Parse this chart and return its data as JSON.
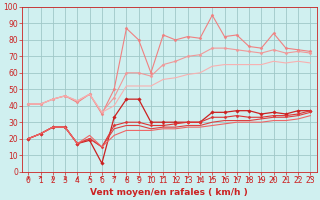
{
  "background_color": "#d0f0f0",
  "grid_color": "#a0c8c8",
  "xlim": [
    -0.5,
    23.5
  ],
  "ylim": [
    0,
    100
  ],
  "xticks": [
    0,
    1,
    2,
    3,
    4,
    5,
    6,
    7,
    8,
    9,
    10,
    11,
    12,
    13,
    14,
    15,
    16,
    17,
    18,
    19,
    20,
    21,
    22,
    23
  ],
  "yticks": [
    0,
    10,
    20,
    30,
    40,
    50,
    60,
    70,
    80,
    90,
    100
  ],
  "xlabel": "Vent moyen/en rafales ( km/h )",
  "xlabel_color": "#cc2222",
  "xlabel_fontsize": 6.5,
  "tick_fontsize": 5.5,
  "series": [
    {
      "x": [
        0,
        1,
        2,
        3,
        4,
        5,
        6,
        7,
        8,
        9,
        10,
        11,
        12,
        13,
        14,
        15,
        16,
        17,
        18,
        19,
        20,
        21,
        22,
        23
      ],
      "y": [
        41,
        41,
        44,
        46,
        42,
        47,
        35,
        50,
        87,
        80,
        60,
        83,
        80,
        82,
        81,
        95,
        82,
        83,
        76,
        75,
        84,
        75,
        74,
        73
      ],
      "color": "#f08080",
      "lw": 0.8,
      "marker": "D",
      "ms": 1.5
    },
    {
      "x": [
        0,
        1,
        2,
        3,
        4,
        5,
        6,
        7,
        8,
        9,
        10,
        11,
        12,
        13,
        14,
        15,
        16,
        17,
        18,
        19,
        20,
        21,
        22,
        23
      ],
      "y": [
        41,
        41,
        44,
        46,
        43,
        47,
        36,
        45,
        60,
        60,
        58,
        65,
        67,
        70,
        71,
        75,
        75,
        74,
        73,
        72,
        74,
        72,
        73,
        72
      ],
      "color": "#f09898",
      "lw": 0.8,
      "marker": "D",
      "ms": 1.5
    },
    {
      "x": [
        0,
        1,
        2,
        3,
        4,
        5,
        6,
        7,
        8,
        9,
        10,
        11,
        12,
        13,
        14,
        15,
        16,
        17,
        18,
        19,
        20,
        21,
        22,
        23
      ],
      "y": [
        41,
        41,
        44,
        46,
        43,
        47,
        36,
        40,
        52,
        52,
        52,
        56,
        57,
        59,
        60,
        64,
        65,
        65,
        65,
        65,
        67,
        66,
        67,
        66
      ],
      "color": "#f8b0b0",
      "lw": 0.8,
      "marker": null,
      "ms": 0
    },
    {
      "x": [
        0,
        1,
        2,
        3,
        4,
        5,
        6,
        7,
        8,
        9,
        10,
        11,
        12,
        13,
        14,
        15,
        16,
        17,
        18,
        19,
        20,
        21,
        22,
        23
      ],
      "y": [
        20,
        23,
        27,
        27,
        17,
        19,
        5,
        33,
        44,
        44,
        30,
        30,
        30,
        30,
        30,
        36,
        36,
        37,
        37,
        35,
        36,
        35,
        37,
        37
      ],
      "color": "#cc2020",
      "lw": 0.9,
      "marker": "D",
      "ms": 1.8
    },
    {
      "x": [
        0,
        1,
        2,
        3,
        4,
        5,
        6,
        7,
        8,
        9,
        10,
        11,
        12,
        13,
        14,
        15,
        16,
        17,
        18,
        19,
        20,
        21,
        22,
        23
      ],
      "y": [
        20,
        23,
        27,
        27,
        17,
        20,
        15,
        28,
        30,
        30,
        28,
        28,
        29,
        30,
        30,
        33,
        33,
        34,
        33,
        33,
        34,
        34,
        35,
        37
      ],
      "color": "#dd3333",
      "lw": 0.8,
      "marker": "D",
      "ms": 1.5
    },
    {
      "x": [
        0,
        1,
        2,
        3,
        4,
        5,
        6,
        7,
        8,
        9,
        10,
        11,
        12,
        13,
        14,
        15,
        16,
        17,
        18,
        19,
        20,
        21,
        22,
        23
      ],
      "y": [
        20,
        23,
        27,
        27,
        17,
        20,
        15,
        26,
        28,
        28,
        26,
        27,
        27,
        28,
        28,
        30,
        31,
        31,
        31,
        32,
        33,
        33,
        34,
        36
      ],
      "color": "#dd4040",
      "lw": 0.8,
      "marker": null,
      "ms": 0
    },
    {
      "x": [
        0,
        1,
        2,
        3,
        4,
        5,
        6,
        7,
        8,
        9,
        10,
        11,
        12,
        13,
        14,
        15,
        16,
        17,
        18,
        19,
        20,
        21,
        22,
        23
      ],
      "y": [
        20,
        23,
        27,
        27,
        17,
        22,
        15,
        22,
        25,
        25,
        25,
        26,
        26,
        27,
        27,
        28,
        29,
        30,
        30,
        30,
        31,
        31,
        32,
        34
      ],
      "color": "#ee6666",
      "lw": 0.8,
      "marker": null,
      "ms": 0
    }
  ],
  "arrow_angles": [
    0,
    45,
    0,
    0,
    0,
    0,
    270,
    45,
    0,
    45,
    135,
    45,
    0,
    45,
    0,
    0,
    0,
    0,
    0,
    0,
    0,
    0,
    315,
    315
  ]
}
